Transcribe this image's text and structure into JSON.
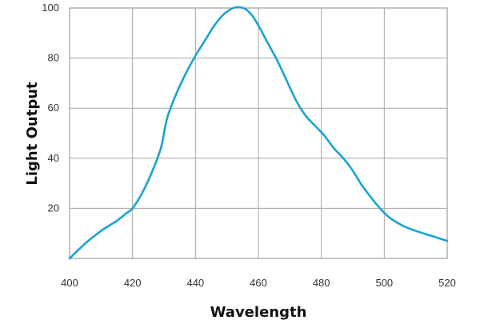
{
  "chart_data": {
    "type": "line",
    "title": "",
    "xlabel": "Wavelength",
    "ylabel": "Light Output",
    "xlim": [
      400,
      520
    ],
    "ylim": [
      0,
      100
    ],
    "x_ticks": [
      400,
      420,
      440,
      460,
      480,
      500,
      520
    ],
    "y_ticks": [
      20,
      40,
      60,
      80,
      100
    ],
    "grid": true,
    "legend": "none",
    "line_color": "#1aa3d4",
    "series": [
      {
        "x": [
          400,
          405,
          410,
          415,
          418,
          420,
          423,
          426,
          429,
          431,
          434,
          437,
          440,
          443,
          446,
          449,
          452,
          454,
          456,
          458,
          460,
          463,
          466,
          469,
          472,
          475,
          478,
          481,
          484,
          487,
          490,
          493,
          496,
          499,
          502,
          506,
          510,
          515,
          520
        ],
        "y": [
          0,
          6,
          11,
          15,
          18,
          20,
          26,
          34,
          44,
          56,
          66,
          74,
          81,
          87,
          93,
          97.5,
          100,
          100.3,
          99.5,
          97,
          93,
          86,
          79,
          71,
          63,
          57,
          53,
          49,
          44,
          40,
          35,
          29,
          24,
          19.5,
          16,
          13,
          11,
          9,
          7
        ]
      }
    ]
  }
}
